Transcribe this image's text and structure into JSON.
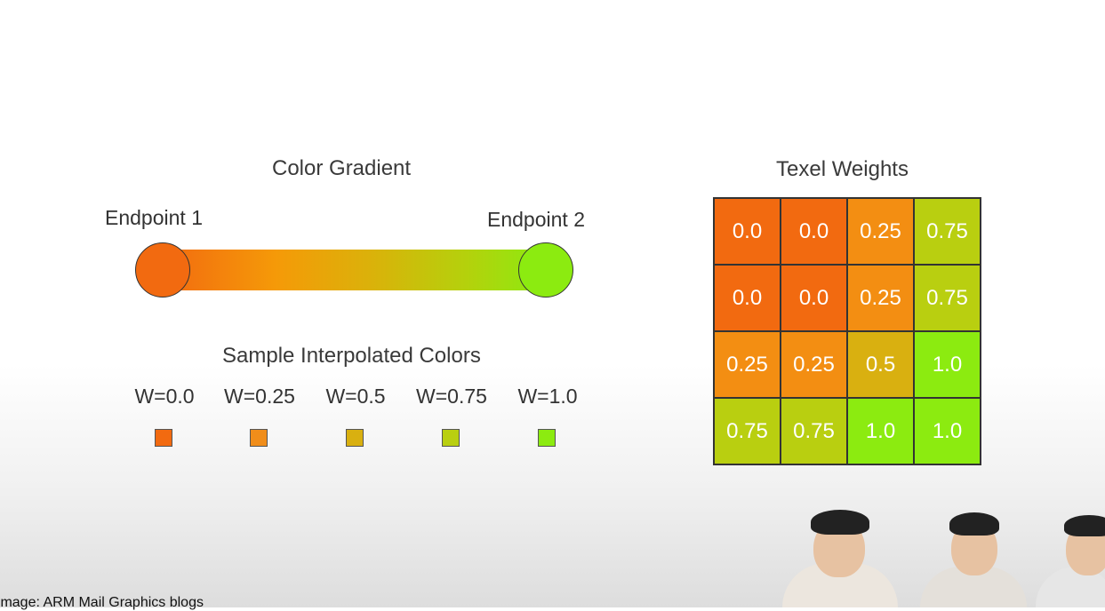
{
  "gradient": {
    "title": "Color Gradient",
    "endpoint1": {
      "label": "Endpoint 1",
      "color": "#f26a10"
    },
    "endpoint2": {
      "label": "Endpoint 2",
      "color": "#8ceb10"
    }
  },
  "samples": {
    "title": "Sample Interpolated Colors",
    "items": [
      {
        "label": "W=0.0",
        "color": "#f26a10"
      },
      {
        "label": "W=0.25",
        "color": "#f08d1a"
      },
      {
        "label": "W=0.5",
        "color": "#d9b010"
      },
      {
        "label": "W=0.75",
        "color": "#b9cf10"
      },
      {
        "label": "W=1.0",
        "color": "#8ceb10"
      }
    ]
  },
  "texel": {
    "title": "Texel Weights",
    "rows": [
      [
        "0.0",
        "0.0",
        "0.25",
        "0.75"
      ],
      [
        "0.0",
        "0.0",
        "0.25",
        "0.75"
      ],
      [
        "0.25",
        "0.25",
        "0.5",
        "1.0"
      ],
      [
        "0.75",
        "0.75",
        "1.0",
        "1.0"
      ]
    ]
  },
  "caption": "Image: ARM Mail Graphics blogs"
}
